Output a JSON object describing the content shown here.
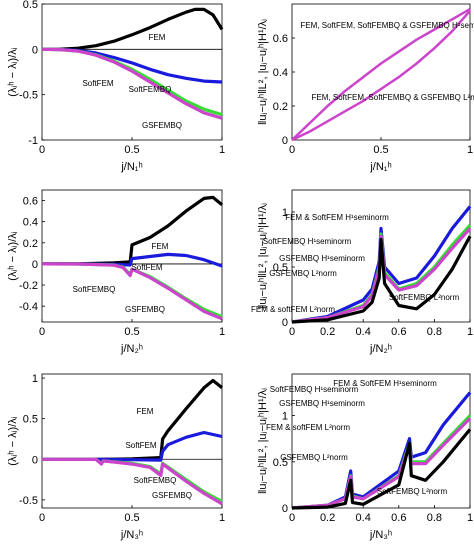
{
  "chart_data": [
    {
      "type": "line",
      "panel": "a",
      "xlabel": "j/N₁ʰ",
      "ylabel": "(λⱼʰ − λⱼ)/λⱼ",
      "xlim": [
        0,
        1
      ],
      "ylim": [
        -1,
        0.5
      ],
      "xticks": [
        "0",
        "0.5",
        "1"
      ],
      "yticks": [
        "-1",
        "-0.5",
        "0",
        "0.5"
      ],
      "series": [
        {
          "name": "FEM",
          "color": "#000000",
          "x": [
            0,
            0.1,
            0.2,
            0.3,
            0.4,
            0.5,
            0.6,
            0.7,
            0.8,
            0.85,
            0.9,
            0.95,
            1
          ],
          "y": [
            0,
            0.002,
            0.012,
            0.04,
            0.09,
            0.16,
            0.24,
            0.33,
            0.41,
            0.44,
            0.44,
            0.38,
            0.22
          ]
        },
        {
          "name": "SoftFEM",
          "color": "#1a1adc",
          "x": [
            0,
            0.1,
            0.2,
            0.3,
            0.4,
            0.5,
            0.6,
            0.7,
            0.8,
            0.9,
            1
          ],
          "y": [
            0,
            -0.002,
            -0.012,
            -0.04,
            -0.09,
            -0.15,
            -0.22,
            -0.28,
            -0.32,
            -0.35,
            -0.36
          ]
        },
        {
          "name": "SoftFEMBQ",
          "color": "#33dd33",
          "x": [
            0,
            0.1,
            0.2,
            0.3,
            0.4,
            0.5,
            0.6,
            0.7,
            0.8,
            0.9,
            1
          ],
          "y": [
            0,
            -0.003,
            -0.02,
            -0.06,
            -0.13,
            -0.22,
            -0.33,
            -0.45,
            -0.57,
            -0.66,
            -0.72
          ]
        },
        {
          "name": "GSFEMBQ",
          "color": "#cc44cc",
          "x": [
            0,
            0.1,
            0.2,
            0.3,
            0.4,
            0.5,
            0.6,
            0.7,
            0.8,
            0.9,
            1
          ],
          "y": [
            0,
            -0.003,
            -0.02,
            -0.065,
            -0.14,
            -0.24,
            -0.36,
            -0.48,
            -0.6,
            -0.7,
            -0.76
          ]
        }
      ],
      "annotations": [
        "FEM",
        "SoftFEM",
        "SoftFEMBQ",
        "GSFEMBQ"
      ]
    },
    {
      "type": "line",
      "panel": "b",
      "xlabel": "j/N₁ʰ",
      "ylabel": "‖uⱼ−uⱼʰ‖L², |uⱼ−uⱼʰ|H¹/λⱼ",
      "xlim": [
        0,
        1
      ],
      "ylim": [
        0,
        0.8
      ],
      "xticks": [
        "0",
        "0.5",
        "1"
      ],
      "yticks": [
        "0",
        "0.2",
        "0.4",
        "0.6"
      ],
      "series": [
        {
          "name": "H¹ seminorm",
          "color": "#cc44cc",
          "x": [
            0,
            0.1,
            0.2,
            0.3,
            0.4,
            0.5,
            0.6,
            0.7,
            0.8,
            0.9,
            1
          ],
          "y": [
            0,
            0.1,
            0.2,
            0.29,
            0.37,
            0.45,
            0.52,
            0.59,
            0.65,
            0.71,
            0.77
          ]
        },
        {
          "name": "L² norm",
          "color": "#cc44cc",
          "x": [
            0,
            0.1,
            0.2,
            0.3,
            0.4,
            0.5,
            0.6,
            0.7,
            0.8,
            0.9,
            1
          ],
          "y": [
            0,
            0.05,
            0.11,
            0.17,
            0.23,
            0.3,
            0.37,
            0.45,
            0.54,
            0.64,
            0.76
          ]
        }
      ],
      "annotations": [
        "FEM, SoftFEM, SoftFEMBQ & GSFEMBQ H¹seminorm",
        "FEM, SoftFEM, SoftFEMBQ & GSFEMBQ L²norm"
      ]
    },
    {
      "type": "line",
      "panel": "c",
      "xlabel": "j/N₂ʰ",
      "ylabel": "(λⱼʰ − λⱼ)/λⱼ",
      "xlim": [
        0,
        1
      ],
      "ylim": [
        -0.55,
        0.7
      ],
      "xticks": [
        "0",
        "0.5",
        "1"
      ],
      "yticks": [
        "-0.4",
        "-0.2",
        "0",
        "0.2",
        "0.4",
        "0.6"
      ],
      "series": [
        {
          "name": "FEM",
          "color": "#000000",
          "x": [
            0,
            0.2,
            0.4,
            0.49,
            0.5,
            0.6,
            0.7,
            0.8,
            0.9,
            0.95,
            1
          ],
          "y": [
            0,
            0.001,
            0.01,
            0.02,
            0.18,
            0.25,
            0.36,
            0.5,
            0.62,
            0.63,
            0.56
          ]
        },
        {
          "name": "SoftFEM",
          "color": "#1a1adc",
          "x": [
            0,
            0.2,
            0.4,
            0.49,
            0.5,
            0.6,
            0.7,
            0.8,
            0.9,
            1
          ],
          "y": [
            0,
            0,
            -0.005,
            -0.01,
            0.05,
            0.07,
            0.09,
            0.08,
            0.04,
            -0.02
          ]
        },
        {
          "name": "SoftFEMBQ",
          "color": "#33dd33",
          "x": [
            0,
            0.2,
            0.4,
            0.45,
            0.49,
            0.5,
            0.6,
            0.7,
            0.8,
            0.9,
            1
          ],
          "y": [
            0,
            -0.001,
            -0.01,
            -0.03,
            -0.1,
            -0.05,
            -0.12,
            -0.22,
            -0.33,
            -0.43,
            -0.5
          ]
        },
        {
          "name": "GSFEMBQ",
          "color": "#cc44cc",
          "x": [
            0,
            0.2,
            0.4,
            0.45,
            0.49,
            0.5,
            0.6,
            0.7,
            0.8,
            0.9,
            1
          ],
          "y": [
            0,
            -0.001,
            -0.012,
            -0.035,
            -0.11,
            -0.05,
            -0.13,
            -0.23,
            -0.34,
            -0.45,
            -0.52
          ]
        }
      ],
      "annotations": [
        "FEM",
        "SoftFEM",
        "SoftFEMBQ",
        "GSFEMBQ"
      ]
    },
    {
      "type": "line",
      "panel": "d",
      "xlabel": "j/N₂ʰ",
      "ylabel": "‖uⱼ−uⱼʰ‖L², |uⱼ−uⱼʰ|H¹/λⱼ",
      "xlim": [
        0,
        1
      ],
      "ylim": [
        0,
        1.2
      ],
      "xticks": [
        "0",
        "0.2",
        "0.4",
        "0.6",
        "0.8",
        "1"
      ],
      "yticks": [
        "0",
        "0.5",
        "1"
      ],
      "series": [
        {
          "name": "FEM & SoftFEM H¹seminorm",
          "color": "#1a1adc",
          "x": [
            0,
            0.2,
            0.4,
            0.45,
            0.49,
            0.5,
            0.52,
            0.6,
            0.7,
            0.8,
            0.9,
            1
          ],
          "y": [
            0,
            0.05,
            0.2,
            0.3,
            0.55,
            0.85,
            0.5,
            0.35,
            0.4,
            0.6,
            0.85,
            1.05
          ]
        },
        {
          "name": "SoftFEMBQ H¹seminorm",
          "color": "#33dd33",
          "x": [
            0,
            0.2,
            0.4,
            0.45,
            0.49,
            0.5,
            0.52,
            0.6,
            0.7,
            0.8,
            0.9,
            1
          ],
          "y": [
            0,
            0.04,
            0.15,
            0.25,
            0.5,
            0.8,
            0.45,
            0.3,
            0.35,
            0.5,
            0.7,
            0.88
          ]
        },
        {
          "name": "GSFEMBQ H¹seminorm",
          "color": "#cc44cc",
          "x": [
            0,
            0.2,
            0.4,
            0.45,
            0.49,
            0.5,
            0.52,
            0.6,
            0.7,
            0.8,
            0.9,
            1
          ],
          "y": [
            0,
            0.04,
            0.14,
            0.24,
            0.48,
            0.78,
            0.43,
            0.29,
            0.33,
            0.48,
            0.67,
            0.85
          ]
        },
        {
          "name": "L²norm",
          "color": "#000000",
          "x": [
            0,
            0.2,
            0.4,
            0.45,
            0.49,
            0.5,
            0.52,
            0.6,
            0.7,
            0.8,
            0.9,
            1
          ],
          "y": [
            0,
            0.02,
            0.1,
            0.18,
            0.4,
            0.75,
            0.35,
            0.15,
            0.12,
            0.25,
            0.48,
            0.78
          ]
        }
      ],
      "annotations": [
        "FEM & SoftFEM H¹seminorm",
        "SoftFEMBQ H¹seminorm",
        "GSFEMBQ H¹seminorm",
        "GSFEMBQ L²norm",
        "FEM & softFEM L²norm",
        "SoftFEMBQ L²norm"
      ]
    },
    {
      "type": "line",
      "panel": "e",
      "xlabel": "j/N₃ʰ",
      "ylabel": "(λⱼʰ − λⱼ)/λⱼ",
      "xlim": [
        0,
        1
      ],
      "ylim": [
        -0.6,
        1.05
      ],
      "xticks": [
        "0",
        "0.5",
        "1"
      ],
      "yticks": [
        "-0.5",
        "0",
        "0.5",
        "1"
      ],
      "series": [
        {
          "name": "FEM",
          "color": "#000000",
          "x": [
            0,
            0.3,
            0.5,
            0.66,
            0.67,
            0.7,
            0.8,
            0.9,
            0.95,
            1
          ],
          "y": [
            0,
            0,
            0.005,
            0.02,
            0.25,
            0.35,
            0.62,
            0.88,
            0.97,
            0.88
          ]
        },
        {
          "name": "SoftFEM",
          "color": "#1a1adc",
          "x": [
            0,
            0.3,
            0.5,
            0.66,
            0.67,
            0.7,
            0.8,
            0.9,
            1
          ],
          "y": [
            0,
            0,
            -0.005,
            -0.01,
            0.1,
            0.18,
            0.27,
            0.33,
            0.28
          ]
        },
        {
          "name": "SoftFEMBQ",
          "color": "#33dd33",
          "x": [
            0,
            0.3,
            0.33,
            0.34,
            0.5,
            0.6,
            0.66,
            0.67,
            0.8,
            0.9,
            1
          ],
          "y": [
            0,
            -0.002,
            -0.05,
            -0.02,
            -0.05,
            -0.09,
            -0.18,
            -0.05,
            -0.25,
            -0.4,
            -0.52
          ]
        },
        {
          "name": "GSFEMBQ",
          "color": "#cc44cc",
          "x": [
            0,
            0.3,
            0.33,
            0.34,
            0.5,
            0.6,
            0.66,
            0.67,
            0.8,
            0.9,
            1
          ],
          "y": [
            0,
            -0.002,
            -0.06,
            -0.02,
            -0.06,
            -0.1,
            -0.2,
            -0.06,
            -0.27,
            -0.42,
            -0.55
          ]
        }
      ],
      "annotations": [
        "FEM",
        "SoftFEM",
        "SoftFEMBQ",
        "GSFEMBQ"
      ]
    },
    {
      "type": "line",
      "panel": "f",
      "xlabel": "j/N₃ʰ",
      "ylabel": "‖uⱼ−uⱼʰ‖L², |uⱼ−uⱼʰ|H¹/λⱼ",
      "xlim": [
        0,
        1
      ],
      "ylim": [
        0,
        1.45
      ],
      "xticks": [
        "0",
        "0.2",
        "0.4",
        "0.6",
        "0.8",
        "1"
      ],
      "yticks": [
        "0",
        "0.5",
        "1"
      ],
      "series": [
        {
          "name": "FEM & SoftFEM H¹seminorm",
          "color": "#1a1adc",
          "x": [
            0,
            0.2,
            0.3,
            0.33,
            0.34,
            0.4,
            0.6,
            0.66,
            0.67,
            0.75,
            0.85,
            1
          ],
          "y": [
            0,
            0.03,
            0.12,
            0.4,
            0.15,
            0.12,
            0.4,
            0.75,
            0.55,
            0.6,
            0.9,
            1.25
          ]
        },
        {
          "name": "SoftFEMBQ H¹seminorm",
          "color": "#33dd33",
          "x": [
            0,
            0.2,
            0.3,
            0.33,
            0.34,
            0.4,
            0.6,
            0.66,
            0.67,
            0.75,
            0.85,
            1
          ],
          "y": [
            0,
            0.03,
            0.1,
            0.35,
            0.13,
            0.1,
            0.35,
            0.7,
            0.5,
            0.5,
            0.7,
            1.0
          ]
        },
        {
          "name": "GSFEMBQ H¹seminorm",
          "color": "#cc44cc",
          "x": [
            0,
            0.2,
            0.3,
            0.33,
            0.34,
            0.4,
            0.6,
            0.66,
            0.67,
            0.75,
            0.85,
            1
          ],
          "y": [
            0,
            0.03,
            0.1,
            0.34,
            0.12,
            0.1,
            0.34,
            0.68,
            0.48,
            0.48,
            0.68,
            0.97
          ]
        },
        {
          "name": "L²norm",
          "color": "#000000",
          "x": [
            0,
            0.2,
            0.3,
            0.33,
            0.34,
            0.4,
            0.6,
            0.66,
            0.67,
            0.75,
            0.85,
            1
          ],
          "y": [
            0,
            0.01,
            0.05,
            0.3,
            0.06,
            0.04,
            0.25,
            0.7,
            0.35,
            0.3,
            0.5,
            0.85
          ]
        }
      ],
      "annotations": [
        "SoftFEMBQ H¹seminorm",
        "GSFEMBQ H¹seminorm",
        "FEM & SoftFEM H¹seminorm",
        "FEM & softFEM L²norm",
        "GSFEMBQ L²norm",
        "SoftFEMBQ L²norm"
      ]
    }
  ]
}
